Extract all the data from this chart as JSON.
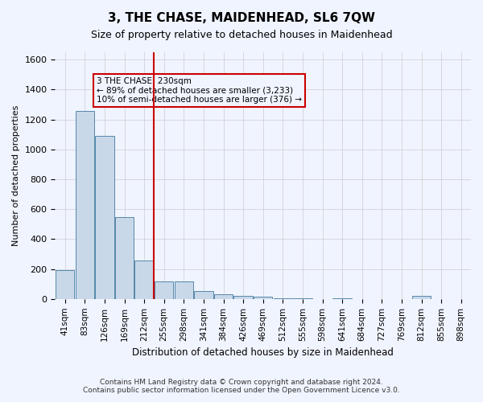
{
  "title": "3, THE CHASE, MAIDENHEAD, SL6 7QW",
  "subtitle": "Size of property relative to detached houses in Maidenhead",
  "xlabel": "Distribution of detached houses by size in Maidenhead",
  "ylabel": "Number of detached properties",
  "footer_line1": "Contains HM Land Registry data © Crown copyright and database right 2024.",
  "footer_line2": "Contains public sector information licensed under the Open Government Licence v3.0.",
  "annotation_line1": "3 THE CHASE: 230sqm",
  "annotation_line2": "← 89% of detached houses are smaller (3,233)",
  "annotation_line3": "10% of semi-detached houses are larger (376) →",
  "bar_color": "#c8d8e8",
  "bar_edge_color": "#5588aa",
  "redline_color": "#cc0000",
  "categories": [
    "41sqm",
    "83sqm",
    "126sqm",
    "169sqm",
    "212sqm",
    "255sqm",
    "298sqm",
    "341sqm",
    "384sqm",
    "426sqm",
    "469sqm",
    "512sqm",
    "555sqm",
    "598sqm",
    "641sqm",
    "684sqm",
    "727sqm",
    "769sqm",
    "812sqm",
    "855sqm",
    "898sqm"
  ],
  "values": [
    190,
    1260,
    1090,
    550,
    255,
    120,
    120,
    55,
    30,
    20,
    15,
    5,
    5,
    0,
    5,
    0,
    0,
    0,
    20,
    0,
    0
  ],
  "redline_x": 4.5,
  "ylim": [
    0,
    1650
  ],
  "yticks": [
    0,
    200,
    400,
    600,
    800,
    1000,
    1200,
    1400,
    1600
  ],
  "grid_color": "#cccccc",
  "bg_color": "#f0f4ff"
}
